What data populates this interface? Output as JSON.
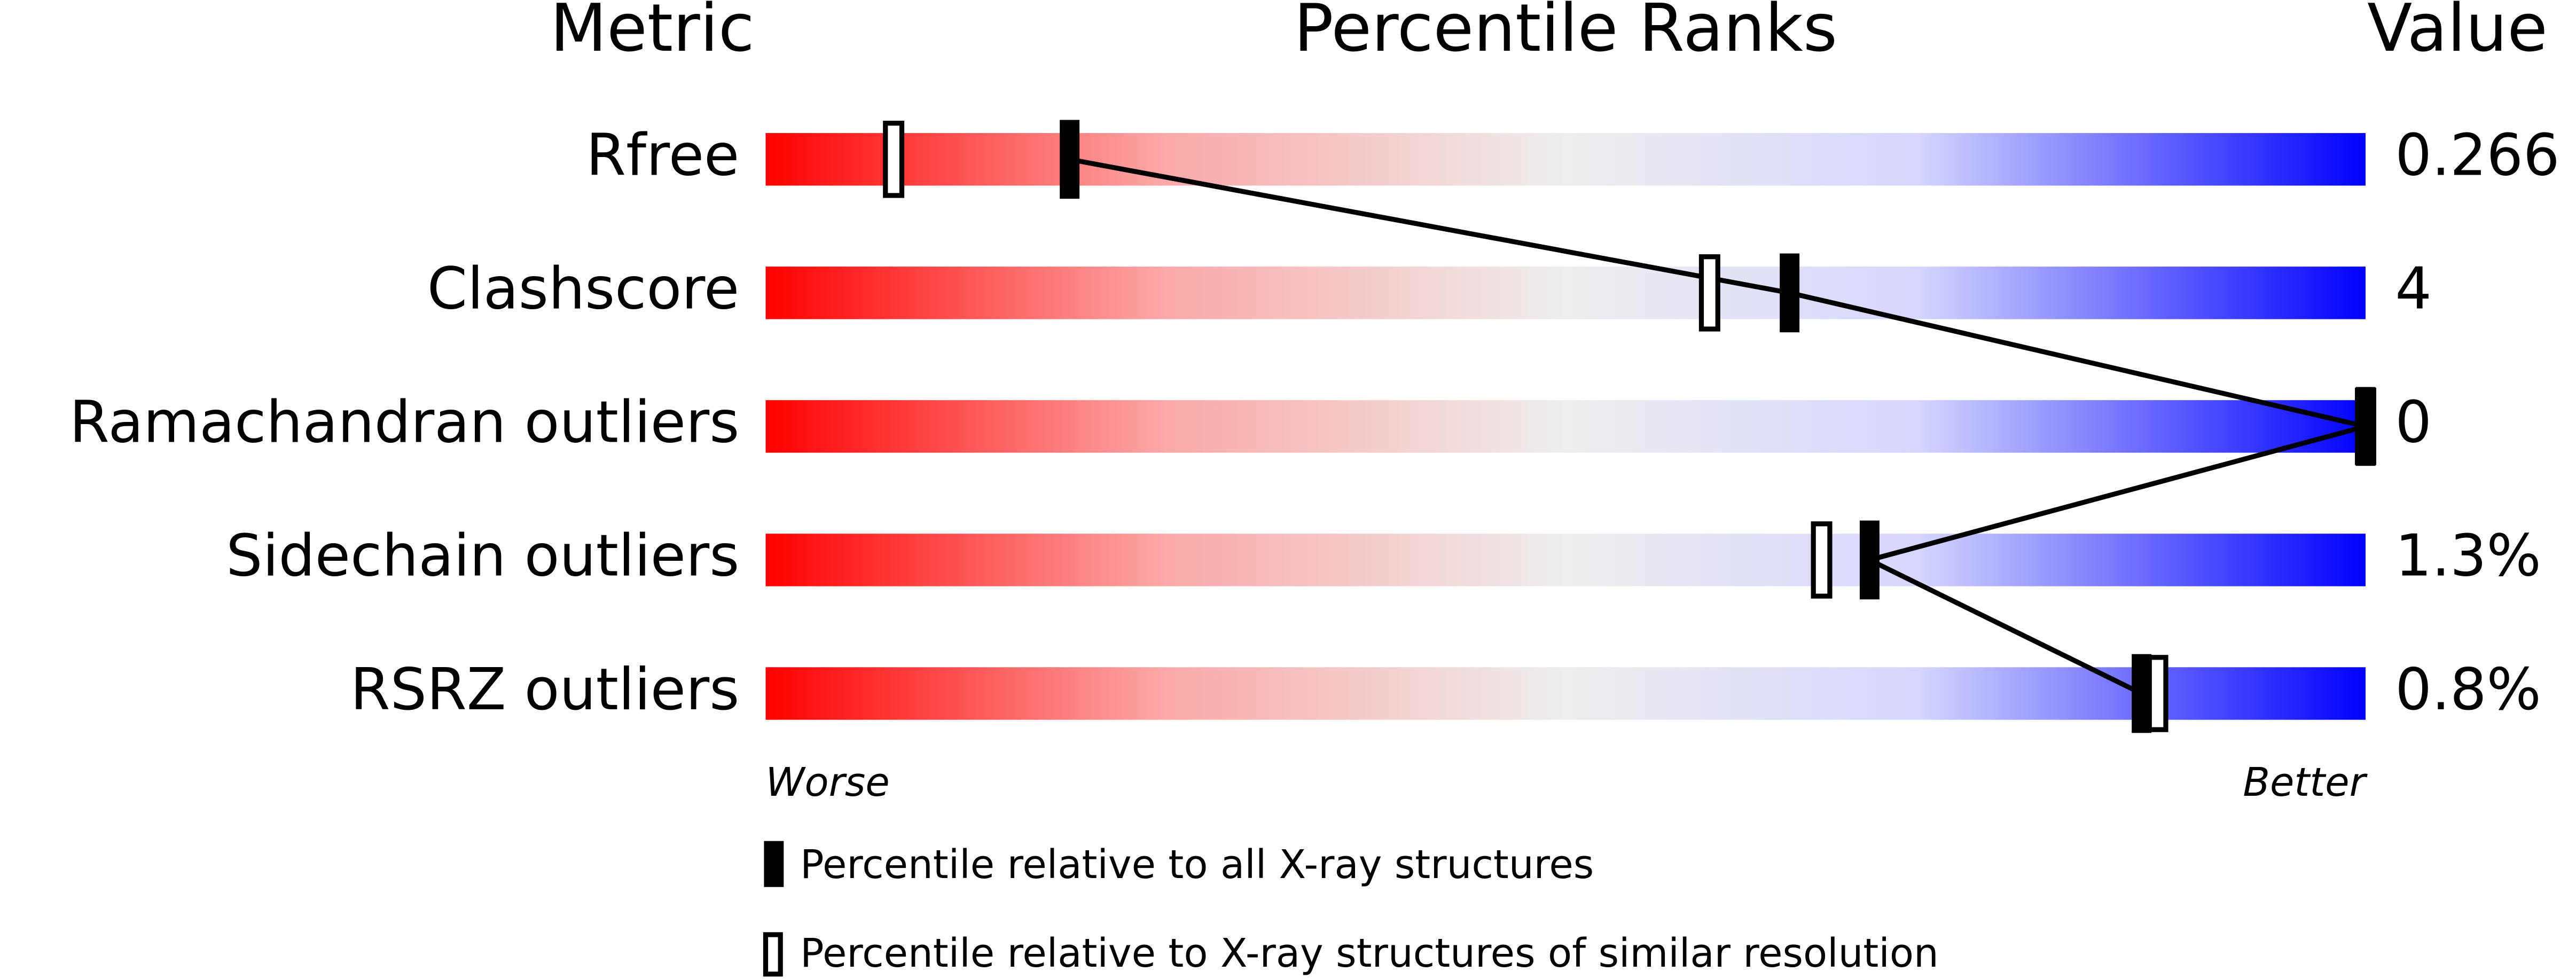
{
  "chart_data": {
    "type": "percentile-slider",
    "title": "Percentile Ranks",
    "metric_header": "Metric",
    "value_header": "Value",
    "categories": [
      "Rfree",
      "Clashscore",
      "Ramachandran outliers",
      "Sidechain outliers",
      "RSRZ outliers"
    ],
    "metric_values": [
      "0.266",
      "4",
      "0",
      "1.3%",
      "0.8%"
    ],
    "xlim": [
      0,
      100
    ],
    "low_label": "Worse",
    "high_label": "Better",
    "series": [
      {
        "name": "Percentile relative to all X-ray structures",
        "color": "#000000",
        "style": "solid",
        "values": [
          19,
          64,
          100,
          69,
          86
        ]
      },
      {
        "name": "Percentile relative to X-ray structures of similar resolution",
        "color": "#000000",
        "style": "hollow",
        "values": [
          8,
          59,
          100,
          66,
          87
        ]
      }
    ]
  }
}
